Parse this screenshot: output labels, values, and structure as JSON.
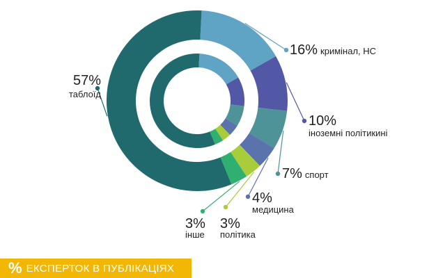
{
  "chart_data": {
    "type": "pie",
    "title": "ЕКСПЕРТОК В ПУБЛІКАЦІЯХ",
    "title_icon": "%",
    "categories": [
      "таблоїд",
      "кримінал, НС",
      "іноземні політикині",
      "спорт",
      "медицина",
      "політика",
      "інше"
    ],
    "values": [
      57,
      16,
      10,
      7,
      4,
      3,
      3
    ],
    "percent_labels": [
      "57%",
      "16%",
      "10%",
      "7%",
      "4%",
      "3%",
      "3%"
    ],
    "colors": [
      "#206a6e",
      "#5fa3c5",
      "#5258a6",
      "#4e9397",
      "#5b73ad",
      "#a8cc3a",
      "#30b070"
    ]
  }
}
